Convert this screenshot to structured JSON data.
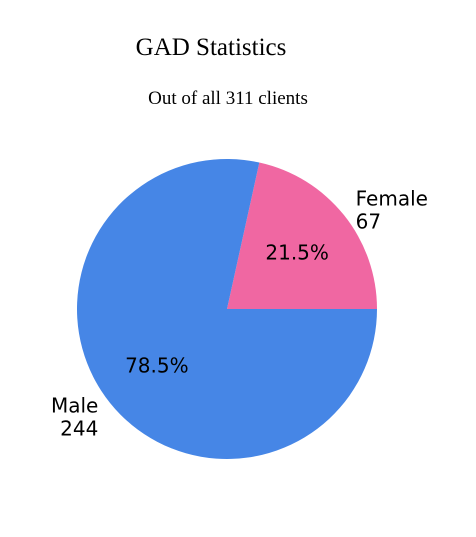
{
  "chart_data": {
    "type": "pie",
    "title": "GAD Statistics",
    "subtitle": "Out of all 311 clients",
    "slices": [
      {
        "name": "Female",
        "value": 67,
        "percent_label": "21.5%",
        "color": "#f067a2"
      },
      {
        "name": "Male",
        "value": 244,
        "percent_label": "78.5%",
        "color": "#4686e6"
      }
    ]
  }
}
